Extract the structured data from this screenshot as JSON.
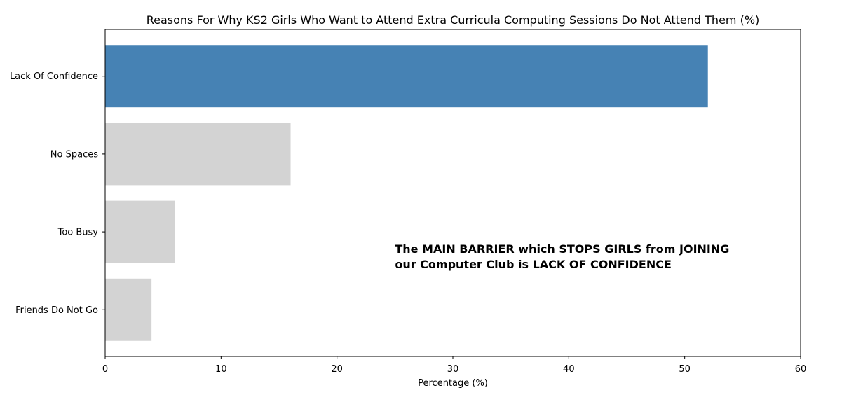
{
  "chart_data": {
    "type": "bar",
    "orientation": "horizontal",
    "title": "Reasons For Why KS2 Girls Who Want to Attend Extra Curricula Computing Sessions Do Not Attend Them (%)",
    "xlabel": "Percentage (%)",
    "ylabel": "",
    "categories": [
      "Lack Of Confidence",
      "No Spaces",
      "Too Busy",
      "Friends Do Not Go"
    ],
    "values": [
      52,
      16,
      6,
      4
    ],
    "bar_colors": [
      "#4682b4",
      "#d3d3d3",
      "#d3d3d3",
      "#d3d3d3"
    ],
    "xlim": [
      0,
      60
    ],
    "xticks": [
      0,
      10,
      20,
      30,
      40,
      50,
      60
    ],
    "grid": false,
    "annotation": {
      "lines": [
        "The MAIN BARRIER which STOPS GIRLS from JOINING",
        "our Computer Club is LACK OF CONFIDENCE"
      ],
      "x": 25
    }
  }
}
